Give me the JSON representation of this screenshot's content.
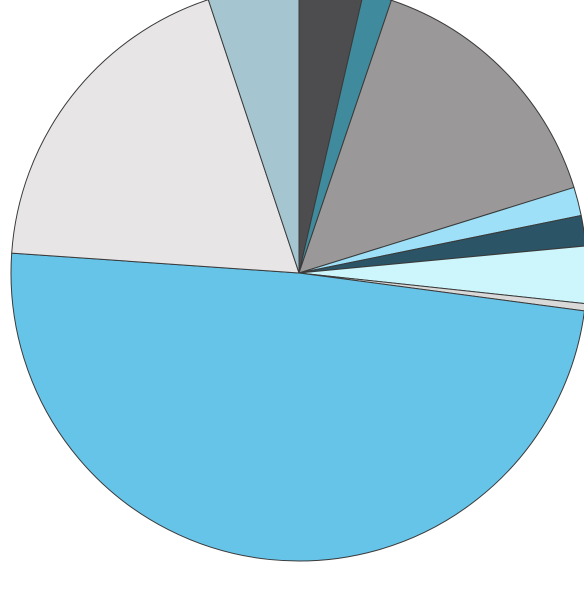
{
  "chart_data": {
    "type": "pie",
    "title": "",
    "start_angle_deg": 0,
    "direction": "clockwise",
    "slices": [
      {
        "value": 3.6,
        "color": "#4d4d4f"
      },
      {
        "value": 1.6,
        "color": "#3f8a9c"
      },
      {
        "value": 15.0,
        "color": "#9a9899"
      },
      {
        "value": 1.6,
        "color": "#9ee0f8"
      },
      {
        "value": 1.7,
        "color": "#2b5566"
      },
      {
        "value": 3.2,
        "color": "#ccf6fc"
      },
      {
        "value": 0.4,
        "color": "#d9d9d9"
      },
      {
        "value": 49.0,
        "color": "#66c4e9"
      },
      {
        "value": 18.8,
        "color": "#e8e5e6"
      },
      {
        "value": 5.1,
        "color": "#a5c6d0"
      }
    ]
  }
}
